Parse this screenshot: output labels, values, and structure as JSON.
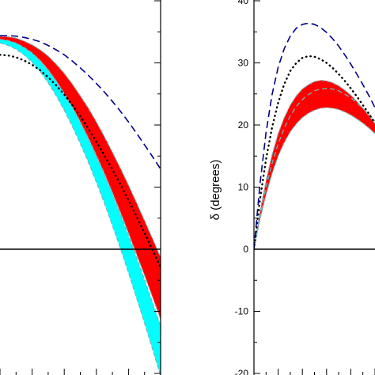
{
  "chart_data": [
    {
      "type": "area",
      "panel": "left",
      "title": "",
      "xlabel": "",
      "ylabel": "",
      "x": [
        0.0,
        0.05,
        0.1,
        0.15,
        0.2,
        0.25,
        0.3,
        0.35,
        0.4,
        0.45,
        0.5,
        0.55,
        0.6,
        0.65,
        0.7,
        0.75,
        0.8,
        0.85,
        0.9,
        0.95,
        1.0
      ],
      "xlim": [
        0,
        1
      ],
      "ylim": [
        -40,
        40
      ],
      "series": [
        {
          "style": "band",
          "color": "#00ffff",
          "upper": [
            34.0,
            33.8,
            33.4,
            32.6,
            31.6,
            30.3,
            28.8,
            27.0,
            25.0,
            22.8,
            20.4,
            17.8,
            15.0,
            12.0,
            8.9,
            5.6,
            2.2,
            -1.3,
            -4.9,
            -8.6,
            -12.4
          ],
          "lower": [
            33.2,
            32.8,
            32.2,
            31.3,
            30.1,
            28.6,
            26.8,
            24.7,
            22.4,
            19.8,
            17.0,
            14.0,
            10.8,
            7.4,
            3.8,
            0.1,
            -3.8,
            -7.8,
            -11.9,
            -16.1,
            -20.4
          ]
        },
        {
          "style": "band",
          "color": "#ff0000",
          "upper": [
            34.3,
            34.2,
            34.0,
            33.5,
            32.9,
            32.1,
            31.1,
            29.8,
            28.3,
            26.6,
            24.7,
            22.7,
            20.5,
            18.1,
            15.6,
            13.0,
            10.3,
            7.5,
            4.6,
            1.7,
            -1.3
          ],
          "lower": [
            33.8,
            33.6,
            33.2,
            32.5,
            31.6,
            30.4,
            28.9,
            27.1,
            25.1,
            22.9,
            20.5,
            17.9,
            15.1,
            12.2,
            9.1,
            5.9,
            2.6,
            -0.8,
            -4.2,
            -7.7,
            -11.3
          ]
        },
        {
          "style": "dashed",
          "color": "#00008b",
          "values": [
            34.4,
            34.4,
            34.3,
            34.1,
            33.8,
            33.4,
            32.8,
            32.1,
            31.3,
            30.3,
            29.2,
            28.0,
            26.7,
            25.3,
            23.8,
            22.2,
            20.5,
            18.7,
            16.8,
            14.9,
            12.9
          ]
        },
        {
          "style": "dotted",
          "color": "#000000",
          "values": [
            31.3,
            31.2,
            30.9,
            30.4,
            29.7,
            28.8,
            27.7,
            26.4,
            24.9,
            23.2,
            21.4,
            19.4,
            17.3,
            15.1,
            12.8,
            10.4,
            7.9,
            5.3,
            2.6,
            -0.1,
            -2.9
          ]
        }
      ]
    },
    {
      "type": "area",
      "panel": "right",
      "title": "",
      "xlabel": "",
      "ylabel": "δ (degrees)",
      "yticks": [
        -20,
        -10,
        0,
        10,
        20,
        30,
        40
      ],
      "ylim": [
        -20,
        40
      ],
      "x": [
        0.0,
        0.05,
        0.1,
        0.15,
        0.2,
        0.25,
        0.3,
        0.35,
        0.4,
        0.45,
        0.5,
        0.55,
        0.6,
        0.65,
        0.7,
        0.75,
        0.8,
        0.85,
        0.9,
        0.95,
        1.0
      ],
      "xlim": [
        0,
        1
      ],
      "series": [
        {
          "style": "band",
          "color": "#ff0000",
          "upper": [
            0.0,
            6.0,
            11.0,
            15.2,
            18.6,
            21.2,
            23.2,
            24.7,
            25.8,
            26.5,
            27.0,
            27.2,
            27.1,
            26.8,
            26.3,
            25.6,
            24.8,
            23.8,
            22.7,
            21.5,
            20.2
          ],
          "lower": [
            0.0,
            4.8,
            8.8,
            12.2,
            15.0,
            17.2,
            18.9,
            20.2,
            21.2,
            21.9,
            22.4,
            22.7,
            22.8,
            22.7,
            22.5,
            22.1,
            21.6,
            21.0,
            20.3,
            19.5,
            18.6
          ]
        },
        {
          "style": "dashed-edge",
          "color": "#7fb3b3",
          "values": [
            0.0,
            5.4,
            10.0,
            13.8,
            17.0,
            19.5,
            21.5,
            23.0,
            24.1,
            24.9,
            25.5,
            25.8,
            25.9,
            25.8,
            25.5,
            25.0,
            24.4,
            23.6,
            22.7,
            21.7,
            20.6
          ]
        },
        {
          "style": "dotted",
          "color": "#000000",
          "values": [
            0.0,
            8.0,
            14.5,
            19.6,
            23.6,
            26.6,
            28.7,
            30.0,
            30.8,
            31.1,
            31.0,
            30.6,
            30.0,
            29.2,
            28.2,
            27.1,
            25.9,
            24.6,
            23.2,
            21.8,
            20.3
          ]
        },
        {
          "style": "dashed",
          "color": "#00008b",
          "values": [
            0.0,
            10.5,
            18.8,
            24.9,
            29.3,
            32.3,
            34.3,
            35.6,
            36.2,
            36.4,
            36.2,
            35.7,
            34.9,
            33.9,
            32.7,
            31.3,
            29.8,
            28.2,
            26.5,
            24.7,
            22.8
          ]
        }
      ]
    }
  ]
}
